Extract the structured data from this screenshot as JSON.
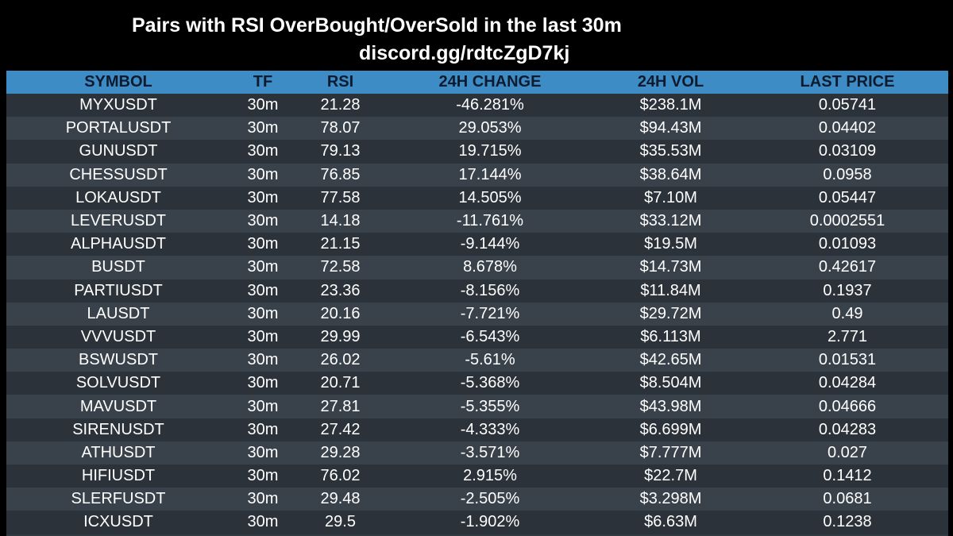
{
  "header": {
    "title": "Pairs with RSI OverBought/OverSold in the last 30m",
    "subtitle": "discord.gg/rdtcZgD7kj"
  },
  "table": {
    "columns": [
      "SYMBOL",
      "TF",
      "RSI",
      "24H CHANGE",
      "24H VOL",
      "LAST PRICE"
    ],
    "rows": [
      [
        "MYXUSDT",
        "30m",
        "21.28",
        "-46.281%",
        "$238.1M",
        "0.05741"
      ],
      [
        "PORTALUSDT",
        "30m",
        "78.07",
        "29.053%",
        "$94.43M",
        "0.04402"
      ],
      [
        "GUNUSDT",
        "30m",
        "79.13",
        "19.715%",
        "$35.53M",
        "0.03109"
      ],
      [
        "CHESSUSDT",
        "30m",
        "76.85",
        "17.144%",
        "$38.64M",
        "0.0958"
      ],
      [
        "LOKAUSDT",
        "30m",
        "77.58",
        "14.505%",
        "$7.10M",
        "0.05447"
      ],
      [
        "LEVERUSDT",
        "30m",
        "14.18",
        "-11.761%",
        "$33.12M",
        "0.0002551"
      ],
      [
        "ALPHAUSDT",
        "30m",
        "21.15",
        "-9.144%",
        "$19.5M",
        "0.01093"
      ],
      [
        "BUSDT",
        "30m",
        "72.58",
        "8.678%",
        "$14.73M",
        "0.42617"
      ],
      [
        "PARTIUSDT",
        "30m",
        "23.36",
        "-8.156%",
        "$11.84M",
        "0.1937"
      ],
      [
        "LAUSDT",
        "30m",
        "20.16",
        "-7.721%",
        "$29.72M",
        "0.49"
      ],
      [
        "VVVUSDT",
        "30m",
        "29.99",
        "-6.543%",
        "$6.113M",
        "2.771"
      ],
      [
        "BSWUSDT",
        "30m",
        "26.02",
        "-5.61%",
        "$42.65M",
        "0.01531"
      ],
      [
        "SOLVUSDT",
        "30m",
        "20.71",
        "-5.368%",
        "$8.504M",
        "0.04284"
      ],
      [
        "MAVUSDT",
        "30m",
        "27.81",
        "-5.355%",
        "$43.98M",
        "0.04666"
      ],
      [
        "SIRENUSDT",
        "30m",
        "27.42",
        "-4.333%",
        "$6.699M",
        "0.04283"
      ],
      [
        "ATHUSDT",
        "30m",
        "29.28",
        "-3.571%",
        "$7.777M",
        "0.027"
      ],
      [
        "HIFIUSDT",
        "30m",
        "76.02",
        "2.915%",
        "$22.7M",
        "0.1412"
      ],
      [
        "SLERFUSDT",
        "30m",
        "29.48",
        "-2.505%",
        "$3.298M",
        "0.0681"
      ],
      [
        "ICXUSDT",
        "30m",
        "29.5",
        "-1.902%",
        "$6.63M",
        "0.1238"
      ]
    ]
  },
  "colors": {
    "background": "#000000",
    "header_row": "#3d8cc6",
    "header_text": "#0e1a2e",
    "row_dark": "#2b3239",
    "row_light": "#39424b",
    "cell_text": "#ffffff"
  }
}
